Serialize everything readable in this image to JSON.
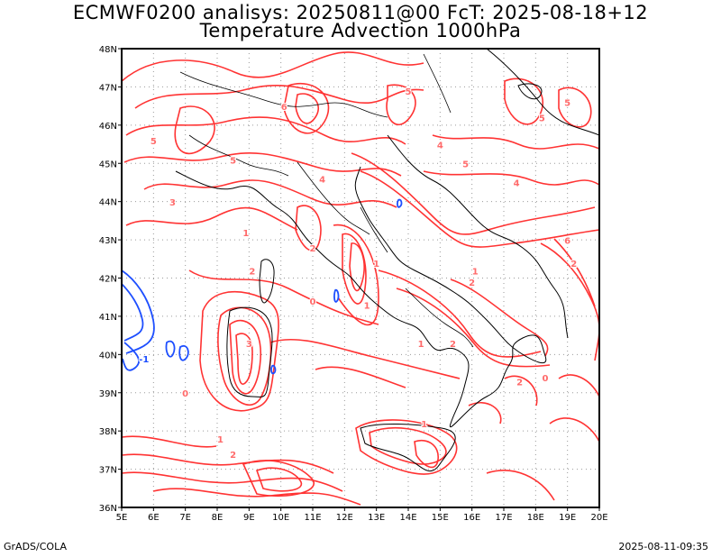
{
  "header": {
    "title_line1": "ECMWF0200 analisys: 20250811@00 FcT: 2025-08-18+12",
    "title_line2": "Temperature Advection 1000hPa"
  },
  "footer": {
    "credit": "GrADS/COLA",
    "timestamp": "2025-08-11-09:35"
  },
  "map": {
    "lon_labels": [
      "5E",
      "6E",
      "7E",
      "8E",
      "9E",
      "10E",
      "11E",
      "12E",
      "13E",
      "14E",
      "15E",
      "16E",
      "17E",
      "18E",
      "19E",
      "20E"
    ],
    "lat_labels": [
      "48N",
      "47N",
      "46N",
      "45N",
      "44N",
      "43N",
      "42N",
      "41N",
      "40N",
      "39N",
      "38N",
      "37N",
      "36N"
    ],
    "colors": {
      "positive_contour": "#ff3333",
      "negative_contour": "#1e4fff",
      "grid": "#9a9a9a",
      "coast": "#000000"
    },
    "contour_labels": [
      {
        "text": "5",
        "lon": 6.0,
        "lat": 45.5
      },
      {
        "text": "3",
        "lon": 6.6,
        "lat": 43.9
      },
      {
        "text": "6",
        "lon": 10.1,
        "lat": 46.4
      },
      {
        "text": "5",
        "lon": 8.5,
        "lat": 45.0
      },
      {
        "text": "4",
        "lon": 11.3,
        "lat": 44.5
      },
      {
        "text": "1",
        "lon": 8.9,
        "lat": 43.1
      },
      {
        "text": "2",
        "lon": 9.1,
        "lat": 42.1
      },
      {
        "text": "2",
        "lon": 11.0,
        "lat": 42.7
      },
      {
        "text": "1",
        "lon": 13.0,
        "lat": 42.3
      },
      {
        "text": "1",
        "lon": 12.7,
        "lat": 41.2
      },
      {
        "text": "0",
        "lon": 11.0,
        "lat": 41.3
      },
      {
        "text": "-1",
        "lon": 5.7,
        "lat": 39.8
      },
      {
        "text": "3",
        "lon": 9.0,
        "lat": 40.2
      },
      {
        "text": "0",
        "lon": 7.0,
        "lat": 38.9
      },
      {
        "text": "1",
        "lon": 8.1,
        "lat": 37.7
      },
      {
        "text": "2",
        "lon": 8.5,
        "lat": 37.3
      },
      {
        "text": "1",
        "lon": 14.5,
        "lat": 38.1
      },
      {
        "text": "1",
        "lon": 14.4,
        "lat": 40.2
      },
      {
        "text": "2",
        "lon": 15.4,
        "lat": 40.2
      },
      {
        "text": "2",
        "lon": 16.0,
        "lat": 41.8
      },
      {
        "text": "4",
        "lon": 15.0,
        "lat": 45.4
      },
      {
        "text": "5",
        "lon": 15.8,
        "lat": 44.9
      },
      {
        "text": "4",
        "lon": 17.4,
        "lat": 44.4
      },
      {
        "text": "5",
        "lon": 18.2,
        "lat": 46.1
      },
      {
        "text": "6",
        "lon": 19.0,
        "lat": 42.9
      },
      {
        "text": "5",
        "lon": 19.0,
        "lat": 46.5
      },
      {
        "text": "2",
        "lon": 19.2,
        "lat": 42.3
      },
      {
        "text": "1",
        "lon": 16.1,
        "lat": 42.1
      },
      {
        "text": "2",
        "lon": 17.5,
        "lat": 39.2
      },
      {
        "text": "0",
        "lon": 18.3,
        "lat": 39.3
      },
      {
        "text": "5",
        "lon": 14.0,
        "lat": 46.8
      }
    ]
  }
}
